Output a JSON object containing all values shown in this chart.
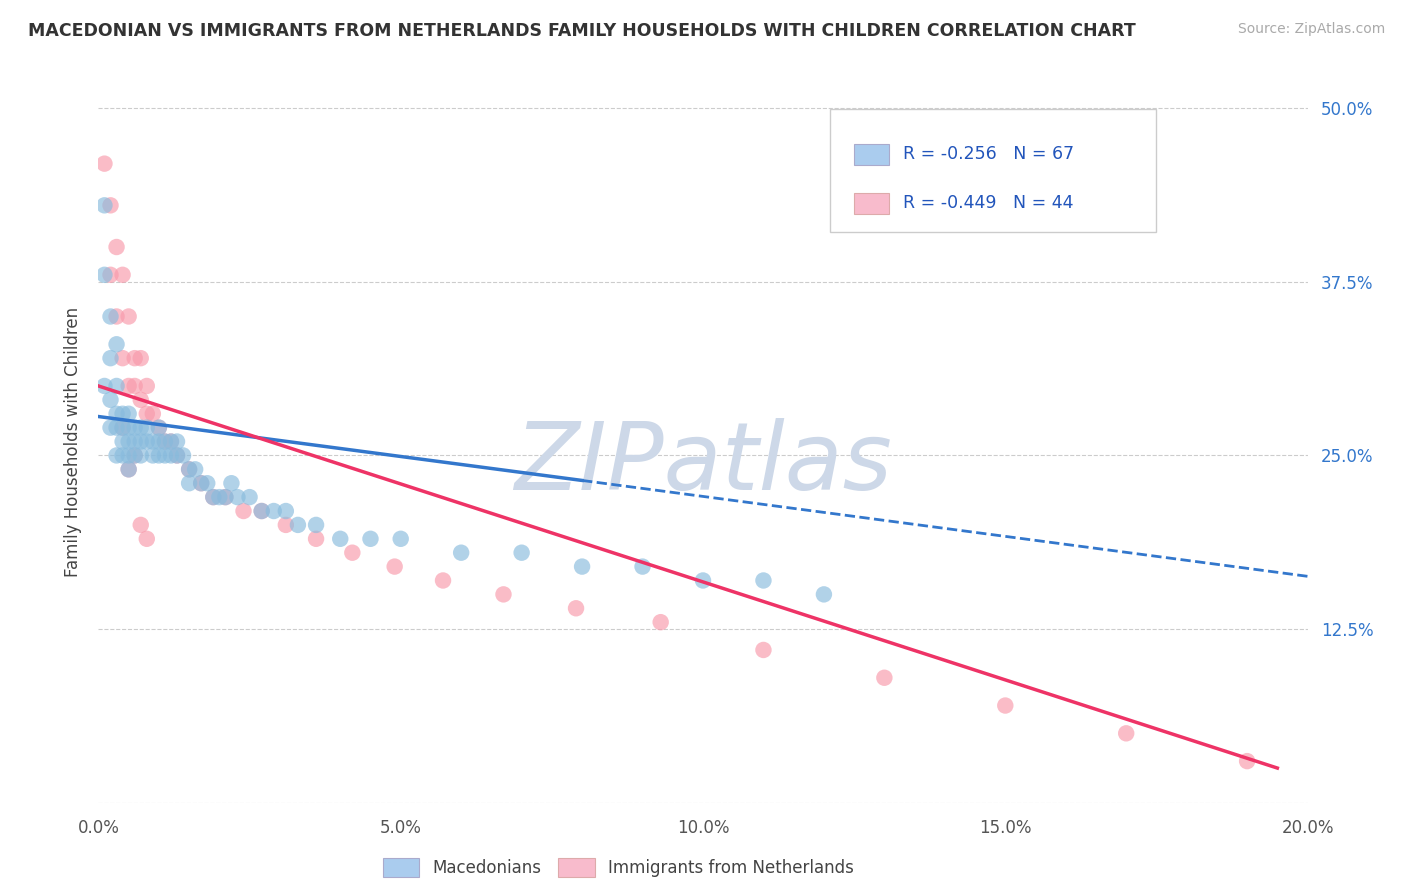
{
  "title": "MACEDONIAN VS IMMIGRANTS FROM NETHERLANDS FAMILY HOUSEHOLDS WITH CHILDREN CORRELATION CHART",
  "source_text": "Source: ZipAtlas.com",
  "ylabel": "Family Households with Children",
  "r1": -0.256,
  "n1": 67,
  "r2": -0.449,
  "n2": 44,
  "legend_label1": "Macedonians",
  "legend_label2": "Immigrants from Netherlands",
  "color1": "#88bbdd",
  "color2": "#f899aa",
  "color1_fill": "#aaccee",
  "color2_fill": "#f8bbcc",
  "trendline_color1": "#3377cc",
  "trendline_color2": "#ee3366",
  "watermark_color": "#cdd8e8",
  "xlim": [
    0.0,
    0.2
  ],
  "ylim": [
    0.0,
    0.52
  ],
  "xticks": [
    0.0,
    0.05,
    0.1,
    0.15,
    0.2
  ],
  "xtick_labels": [
    "0.0%",
    "5.0%",
    "10.0%",
    "15.0%",
    "20.0%"
  ],
  "ytick_labels_right": [
    "",
    "12.5%",
    "25.0%",
    "37.5%",
    "50.0%"
  ],
  "ytick_vals_right": [
    0.0,
    0.125,
    0.25,
    0.375,
    0.5
  ],
  "background_color": "#ffffff",
  "grid_color": "#cccccc",
  "title_color": "#333333",
  "macedonians_x": [
    0.001,
    0.001,
    0.001,
    0.002,
    0.002,
    0.002,
    0.002,
    0.003,
    0.003,
    0.003,
    0.003,
    0.003,
    0.004,
    0.004,
    0.004,
    0.004,
    0.005,
    0.005,
    0.005,
    0.005,
    0.005,
    0.006,
    0.006,
    0.006,
    0.007,
    0.007,
    0.007,
    0.008,
    0.008,
    0.009,
    0.009,
    0.01,
    0.01,
    0.01,
    0.011,
    0.011,
    0.012,
    0.012,
    0.013,
    0.013,
    0.014,
    0.015,
    0.015,
    0.016,
    0.017,
    0.018,
    0.019,
    0.02,
    0.021,
    0.022,
    0.023,
    0.025,
    0.027,
    0.029,
    0.031,
    0.033,
    0.036,
    0.04,
    0.045,
    0.05,
    0.06,
    0.07,
    0.08,
    0.09,
    0.1,
    0.11,
    0.12
  ],
  "macedonians_y": [
    0.43,
    0.38,
    0.3,
    0.35,
    0.32,
    0.29,
    0.27,
    0.33,
    0.3,
    0.28,
    0.27,
    0.25,
    0.28,
    0.27,
    0.26,
    0.25,
    0.28,
    0.27,
    0.26,
    0.25,
    0.24,
    0.27,
    0.26,
    0.25,
    0.27,
    0.26,
    0.25,
    0.27,
    0.26,
    0.26,
    0.25,
    0.27,
    0.26,
    0.25,
    0.26,
    0.25,
    0.26,
    0.25,
    0.26,
    0.25,
    0.25,
    0.24,
    0.23,
    0.24,
    0.23,
    0.23,
    0.22,
    0.22,
    0.22,
    0.23,
    0.22,
    0.22,
    0.21,
    0.21,
    0.21,
    0.2,
    0.2,
    0.19,
    0.19,
    0.19,
    0.18,
    0.18,
    0.17,
    0.17,
    0.16,
    0.16,
    0.15
  ],
  "netherlands_x": [
    0.001,
    0.002,
    0.002,
    0.003,
    0.003,
    0.004,
    0.004,
    0.005,
    0.005,
    0.006,
    0.006,
    0.007,
    0.007,
    0.008,
    0.008,
    0.009,
    0.01,
    0.011,
    0.012,
    0.013,
    0.015,
    0.017,
    0.019,
    0.021,
    0.024,
    0.027,
    0.031,
    0.036,
    0.042,
    0.049,
    0.057,
    0.067,
    0.079,
    0.093,
    0.11,
    0.13,
    0.15,
    0.17,
    0.19,
    0.004,
    0.005,
    0.006,
    0.007,
    0.008
  ],
  "netherlands_y": [
    0.46,
    0.43,
    0.38,
    0.4,
    0.35,
    0.38,
    0.32,
    0.35,
    0.3,
    0.32,
    0.3,
    0.32,
    0.29,
    0.3,
    0.28,
    0.28,
    0.27,
    0.26,
    0.26,
    0.25,
    0.24,
    0.23,
    0.22,
    0.22,
    0.21,
    0.21,
    0.2,
    0.19,
    0.18,
    0.17,
    0.16,
    0.15,
    0.14,
    0.13,
    0.11,
    0.09,
    0.07,
    0.05,
    0.03,
    0.27,
    0.24,
    0.25,
    0.2,
    0.19
  ],
  "trend1_x0": 0.0,
  "trend1_y0": 0.278,
  "trend1_x1": 0.08,
  "trend1_y1": 0.232,
  "trend1_dash_x0": 0.08,
  "trend1_dash_x1": 0.2,
  "trend2_x0": 0.0,
  "trend2_y0": 0.3,
  "trend2_x1": 0.195,
  "trend2_y1": 0.025
}
